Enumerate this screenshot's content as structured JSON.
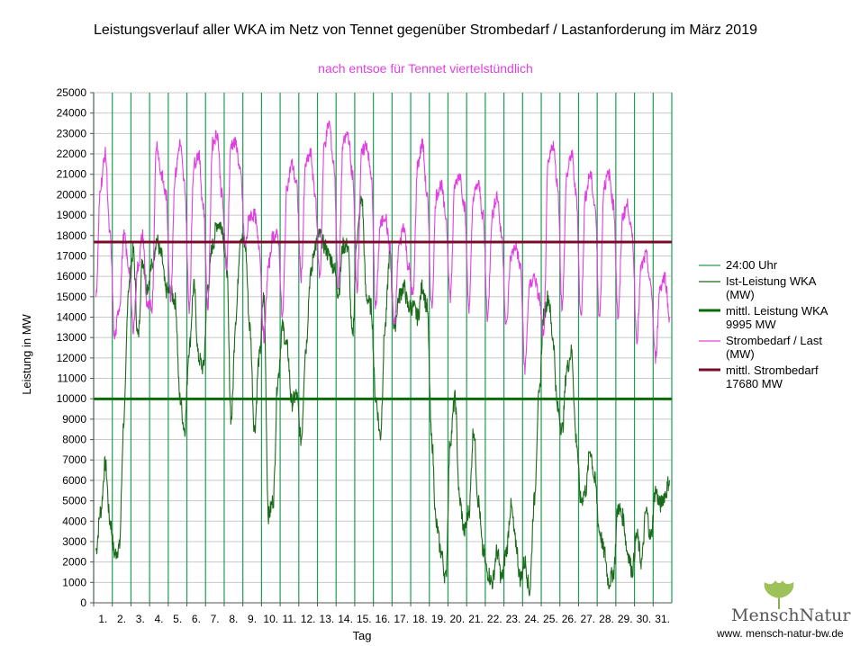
{
  "chart_data": {
    "type": "line",
    "title": "Leistungsverlauf aller WKA im Netz von Tennet gegenüber  Strombedarf / Lastanforderung im März 2019",
    "subtitle": "nach entsoe für Tennet viertelstündlich",
    "xlabel": "Tag",
    "ylabel": "Leistung in MW",
    "ylim": [
      0,
      25000
    ],
    "ytick_step": 1000,
    "yticks": [
      "0",
      "1000",
      "2000",
      "3000",
      "4000",
      "5000",
      "6000",
      "7000",
      "8000",
      "9000",
      "10000",
      "11000",
      "12000",
      "13000",
      "14000",
      "15000",
      "16000",
      "17000",
      "18000",
      "19000",
      "20000",
      "21000",
      "22000",
      "23000",
      "24000",
      "25000"
    ],
    "x_days": 31,
    "categories": [
      "1.",
      "2.",
      "3.",
      "4.",
      "5.",
      "6.",
      "7.",
      "8.",
      "9.",
      "10.",
      "11.",
      "12.",
      "13.",
      "14.",
      "15.",
      "16.",
      "17.",
      "18.",
      "19.",
      "20.",
      "21.",
      "22.",
      "23.",
      "24.",
      "25.",
      "26.",
      "27.",
      "28.",
      "29.",
      "30.",
      "31."
    ],
    "grid": true,
    "legend_position": "right",
    "series": [
      {
        "name": "Ist-Leistung WKA (MW)",
        "color": "#1a6b1a",
        "daily": [
          [
            2600,
            4500,
            6800,
            4000
          ],
          [
            2400,
            2700,
            9000,
            15500
          ],
          [
            17200,
            13000,
            16800,
            15500
          ],
          [
            16500,
            17800,
            17000,
            15300
          ],
          [
            15200,
            14800,
            10000,
            8500
          ],
          [
            12500,
            15500,
            12000,
            11500
          ],
          [
            15500,
            17500,
            18600,
            18500
          ],
          [
            16500,
            9000,
            14000,
            18000
          ],
          [
            17500,
            13500,
            8500,
            12000
          ],
          [
            15000,
            4300,
            5000,
            11000
          ],
          [
            13500,
            12500,
            9800,
            10200
          ],
          [
            8000,
            12500,
            16000,
            17500
          ],
          [
            18000,
            17500,
            17000,
            16500
          ],
          [
            15200,
            17500,
            17500,
            13000
          ],
          [
            18000,
            19800,
            15000,
            14500
          ],
          [
            10000,
            8200,
            13500,
            17000
          ],
          [
            13500,
            15000,
            15500,
            14500
          ],
          [
            14500,
            14000,
            15500,
            14500
          ],
          [
            8000,
            3800,
            2500,
            1200
          ],
          [
            8000,
            10000,
            5000,
            3500
          ],
          [
            4500,
            8500,
            5000,
            2500
          ],
          [
            1500,
            1000,
            2500,
            1200
          ],
          [
            2500,
            4700,
            3000,
            1200
          ],
          [
            2000,
            600,
            5000,
            10000
          ],
          [
            14000,
            15000,
            13000,
            9500
          ],
          [
            8500,
            11500,
            12300,
            8000
          ],
          [
            5000,
            5500,
            7500,
            6000
          ],
          [
            3500,
            2500,
            1000,
            1500
          ],
          [
            4700,
            4200,
            2500,
            1600
          ],
          [
            3300,
            2000,
            4500,
            3200
          ],
          [
            5500,
            4800,
            5300,
            6000
          ]
        ]
      },
      {
        "name": "Strombedarf / Last (MW)",
        "color": "#e040e0",
        "daily": [
          [
            15000,
            20500,
            22000,
            18000
          ],
          [
            13000,
            14500,
            18000,
            16500
          ],
          [
            13500,
            16500,
            18000,
            14500
          ],
          [
            14500,
            22500,
            21000,
            20000
          ],
          [
            15000,
            21000,
            22500,
            20500
          ],
          [
            14500,
            21500,
            22000,
            19500
          ],
          [
            14500,
            22500,
            23000,
            20000
          ],
          [
            16500,
            22500,
            22500,
            21000
          ],
          [
            17500,
            19000,
            19000,
            17500
          ],
          [
            13000,
            16500,
            18000,
            18000
          ],
          [
            14000,
            20500,
            21500,
            20500
          ],
          [
            16000,
            21500,
            22000,
            20000
          ],
          [
            16000,
            22500,
            23500,
            21500
          ],
          [
            15500,
            22500,
            23000,
            21000
          ],
          [
            15500,
            22000,
            22500,
            21000
          ],
          [
            14500,
            18500,
            19000,
            17500
          ],
          [
            13500,
            17500,
            18500,
            16500
          ],
          [
            15000,
            21500,
            22500,
            20000
          ],
          [
            14500,
            20000,
            20500,
            19000
          ],
          [
            15000,
            20500,
            21000,
            19500
          ],
          [
            14500,
            20000,
            20500,
            19000
          ],
          [
            14000,
            19000,
            20000,
            18000
          ],
          [
            13500,
            17000,
            17500,
            16500
          ],
          [
            11500,
            15500,
            16000,
            15000
          ],
          [
            13000,
            21500,
            22500,
            20500
          ],
          [
            14500,
            21000,
            22000,
            20000
          ],
          [
            14000,
            20000,
            21000,
            19500
          ],
          [
            14000,
            20500,
            21000,
            19500
          ],
          [
            14000,
            19000,
            19500,
            18000
          ],
          [
            13000,
            16500,
            17000,
            15500
          ],
          [
            12000,
            15500,
            16000,
            14000
          ]
        ]
      }
    ],
    "reference_lines": [
      {
        "name": "mittl. Leistung WKA 9995 MW",
        "value": 9995,
        "color": "#0a6b0a"
      },
      {
        "name": "mittl. Strombedarf 17680 MW",
        "value": 17680,
        "color": "#7a0a2a"
      }
    ],
    "day_marker": {
      "name": "24:00 Uhr",
      "color": "#1e9e50"
    },
    "legend": [
      {
        "line1": "24:00 Uhr",
        "line2": "",
        "line3": ""
      },
      {
        "line1": "Ist-Leistung WKA",
        "line2": "(MW)",
        "line3": ""
      },
      {
        "line1": "mittl. Leistung WKA",
        "line2": "9995 MW",
        "line3": ""
      },
      {
        "line1": "Strombedarf / Last",
        "line2": "(MW)",
        "line3": ""
      },
      {
        "line1": "mittl. Strombedarf",
        "line2": "17680 MW",
        "line3": ""
      }
    ]
  },
  "branding": {
    "logo_text": "MenschNatur",
    "url": "www. mensch-natur-bw.de",
    "leaf_icon": "ginkgo-leaf-icon"
  }
}
